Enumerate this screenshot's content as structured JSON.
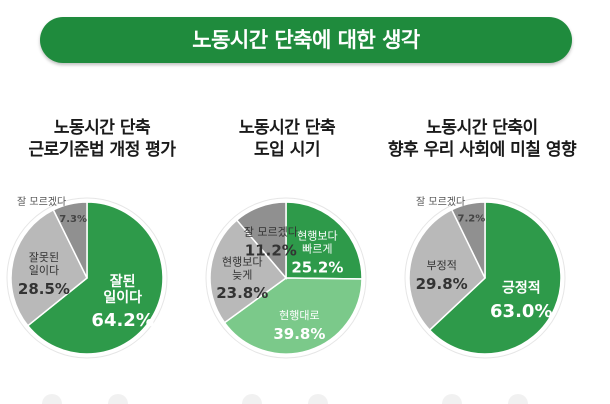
{
  "banner": {
    "title": "노동시간 단축에 대한 생각"
  },
  "colors": {
    "banner": "#1f8b3d",
    "green": "#2e9a4a",
    "light_green": "#7bc98a",
    "gray": "#b9b9b9",
    "dark_gray": "#909090"
  },
  "chart_data": [
    {
      "type": "pie",
      "title": [
        "노동시간 단축",
        "근로기준법 개정 평가"
      ],
      "slices": [
        {
          "label": [
            "잘된",
            "일이다"
          ],
          "value": 64.2,
          "color": "#2e9a4a",
          "text": "light"
        },
        {
          "label": [
            "잘못된",
            "일이다"
          ],
          "value": 28.5,
          "color": "#b9b9b9",
          "text": "dark"
        },
        {
          "label": [
            "잘 모르겠다"
          ],
          "value": 7.3,
          "color": "#909090",
          "text": "dark"
        }
      ]
    },
    {
      "type": "pie",
      "title": [
        "노동시간 단축",
        "도입 시기"
      ],
      "slices": [
        {
          "label": [
            "현행보다",
            "빠르게"
          ],
          "value": 25.2,
          "color": "#2e9a4a",
          "text": "light"
        },
        {
          "label": [
            "현행대로"
          ],
          "value": 39.8,
          "color": "#7bc98a",
          "text": "light"
        },
        {
          "label": [
            "현행보다",
            "늦게"
          ],
          "value": 23.8,
          "color": "#b9b9b9",
          "text": "dark"
        },
        {
          "label": [
            "잘 모르겠다"
          ],
          "value": 11.2,
          "color": "#909090",
          "text": "dark"
        }
      ]
    },
    {
      "type": "pie",
      "title": [
        "노동시간 단축이",
        "향후 우리 사회에 미칠 영향"
      ],
      "slices": [
        {
          "label": [
            "긍정적"
          ],
          "value": 63.0,
          "color": "#2e9a4a",
          "text": "light"
        },
        {
          "label": [
            "부정적"
          ],
          "value": 29.8,
          "color": "#b9b9b9",
          "text": "dark"
        },
        {
          "label": [
            "잘 모르겠다"
          ],
          "value": 7.2,
          "color": "#909090",
          "text": "dark"
        }
      ]
    }
  ]
}
